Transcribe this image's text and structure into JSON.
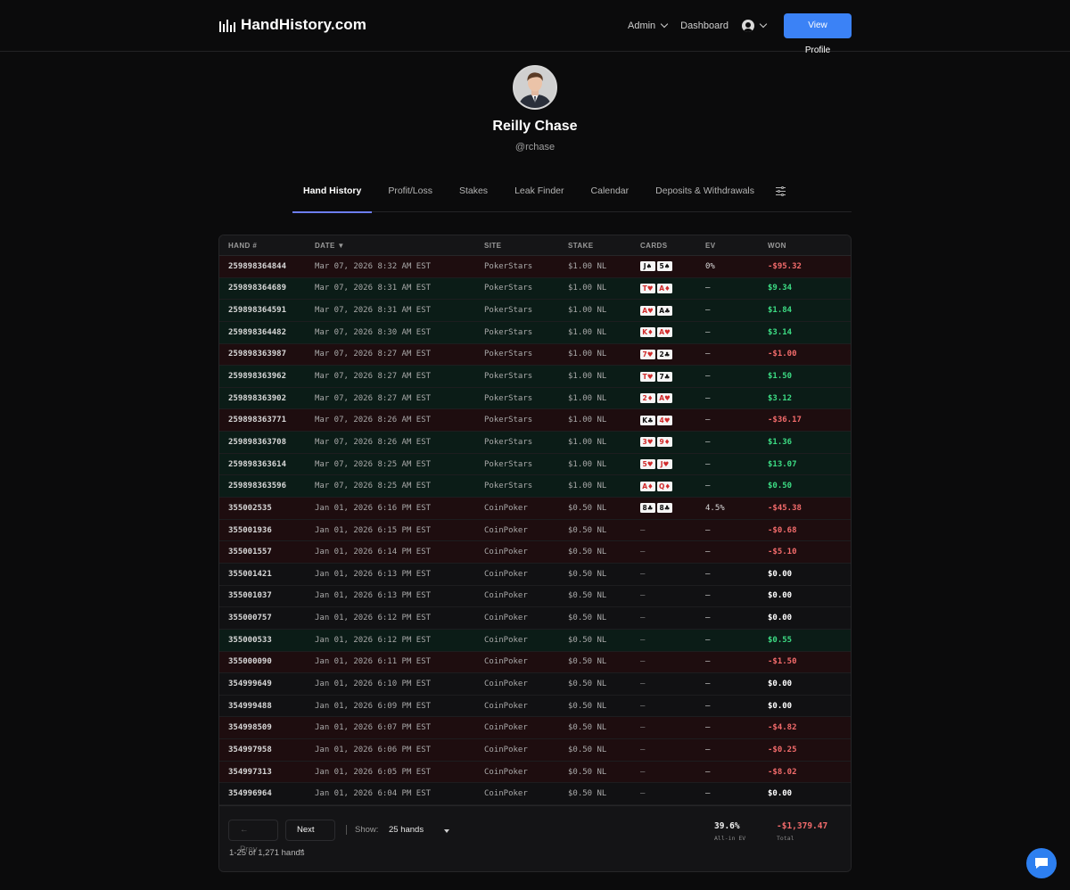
{
  "brand": {
    "name": "HandHistory.com"
  },
  "nav": {
    "admin": "Admin",
    "dashboard": "Dashboard",
    "view_profile": "View Profile"
  },
  "profile": {
    "name": "Reilly Chase",
    "handle": "@rchase"
  },
  "tabs": [
    {
      "label": "Hand History",
      "active": true
    },
    {
      "label": "Profit/Loss"
    },
    {
      "label": "Stakes"
    },
    {
      "label": "Leak Finder"
    },
    {
      "label": "Calendar"
    },
    {
      "label": "Deposits & Withdrawals"
    }
  ],
  "table": {
    "columns": [
      "HAND #",
      "DATE ▼",
      "SITE",
      "STAKE",
      "CARDS",
      "EV",
      "WON"
    ],
    "rows": [
      {
        "hand": "259898364844",
        "date": "Mar 07, 2026 8:32 AM EST",
        "site": "PokerStars",
        "stake": "$1.00 NL",
        "cards": [
          "J♠",
          "5♠"
        ],
        "ev": "0%",
        "won": "-$95.32",
        "result": "neg"
      },
      {
        "hand": "259898364689",
        "date": "Mar 07, 2026 8:31 AM EST",
        "site": "PokerStars",
        "stake": "$1.00 NL",
        "cards": [
          "T♥",
          "A♦"
        ],
        "ev": "—",
        "won": "$9.34",
        "result": "pos"
      },
      {
        "hand": "259898364591",
        "date": "Mar 07, 2026 8:31 AM EST",
        "site": "PokerStars",
        "stake": "$1.00 NL",
        "cards": [
          "A♥",
          "A♣"
        ],
        "ev": "—",
        "won": "$1.84",
        "result": "pos"
      },
      {
        "hand": "259898364482",
        "date": "Mar 07, 2026 8:30 AM EST",
        "site": "PokerStars",
        "stake": "$1.00 NL",
        "cards": [
          "K♦",
          "A♥"
        ],
        "ev": "—",
        "won": "$3.14",
        "result": "pos"
      },
      {
        "hand": "259898363987",
        "date": "Mar 07, 2026 8:27 AM EST",
        "site": "PokerStars",
        "stake": "$1.00 NL",
        "cards": [
          "7♥",
          "2♣"
        ],
        "ev": "—",
        "won": "-$1.00",
        "result": "neg"
      },
      {
        "hand": "259898363962",
        "date": "Mar 07, 2026 8:27 AM EST",
        "site": "PokerStars",
        "stake": "$1.00 NL",
        "cards": [
          "T♥",
          "7♣"
        ],
        "ev": "—",
        "won": "$1.50",
        "result": "pos"
      },
      {
        "hand": "259898363902",
        "date": "Mar 07, 2026 8:27 AM EST",
        "site": "PokerStars",
        "stake": "$1.00 NL",
        "cards": [
          "2♦",
          "A♥"
        ],
        "ev": "—",
        "won": "$3.12",
        "result": "pos"
      },
      {
        "hand": "259898363771",
        "date": "Mar 07, 2026 8:26 AM EST",
        "site": "PokerStars",
        "stake": "$1.00 NL",
        "cards": [
          "K♣",
          "4♥"
        ],
        "ev": "—",
        "won": "-$36.17",
        "result": "neg"
      },
      {
        "hand": "259898363708",
        "date": "Mar 07, 2026 8:26 AM EST",
        "site": "PokerStars",
        "stake": "$1.00 NL",
        "cards": [
          "3♥",
          "9♦"
        ],
        "ev": "—",
        "won": "$1.36",
        "result": "pos"
      },
      {
        "hand": "259898363614",
        "date": "Mar 07, 2026 8:25 AM EST",
        "site": "PokerStars",
        "stake": "$1.00 NL",
        "cards": [
          "5♥",
          "J♥"
        ],
        "ev": "—",
        "won": "$13.07",
        "result": "pos"
      },
      {
        "hand": "259898363596",
        "date": "Mar 07, 2026 8:25 AM EST",
        "site": "PokerStars",
        "stake": "$1.00 NL",
        "cards": [
          "A♦",
          "Q♦"
        ],
        "ev": "—",
        "won": "$0.50",
        "result": "pos"
      },
      {
        "hand": "355002535",
        "date": "Jan 01, 2026 6:16 PM EST",
        "site": "CoinPoker",
        "stake": "$0.50 NL",
        "cards": [
          "8♣",
          "8♣"
        ],
        "ev": "4.5%",
        "won": "-$45.38",
        "result": "neg"
      },
      {
        "hand": "355001936",
        "date": "Jan 01, 2026 6:15 PM EST",
        "site": "CoinPoker",
        "stake": "$0.50 NL",
        "cards": [],
        "ev": "—",
        "won": "-$0.68",
        "result": "neg"
      },
      {
        "hand": "355001557",
        "date": "Jan 01, 2026 6:14 PM EST",
        "site": "CoinPoker",
        "stake": "$0.50 NL",
        "cards": [],
        "ev": "—",
        "won": "-$5.10",
        "result": "neg"
      },
      {
        "hand": "355001421",
        "date": "Jan 01, 2026 6:13 PM EST",
        "site": "CoinPoker",
        "stake": "$0.50 NL",
        "cards": [],
        "ev": "—",
        "won": "$0.00",
        "result": "zero"
      },
      {
        "hand": "355001037",
        "date": "Jan 01, 2026 6:13 PM EST",
        "site": "CoinPoker",
        "stake": "$0.50 NL",
        "cards": [],
        "ev": "—",
        "won": "$0.00",
        "result": "zero"
      },
      {
        "hand": "355000757",
        "date": "Jan 01, 2026 6:12 PM EST",
        "site": "CoinPoker",
        "stake": "$0.50 NL",
        "cards": [],
        "ev": "—",
        "won": "$0.00",
        "result": "zero"
      },
      {
        "hand": "355000533",
        "date": "Jan 01, 2026 6:12 PM EST",
        "site": "CoinPoker",
        "stake": "$0.50 NL",
        "cards": [],
        "ev": "—",
        "won": "$0.55",
        "result": "pos"
      },
      {
        "hand": "355000090",
        "date": "Jan 01, 2026 6:11 PM EST",
        "site": "CoinPoker",
        "stake": "$0.50 NL",
        "cards": [],
        "ev": "—",
        "won": "-$1.50",
        "result": "neg"
      },
      {
        "hand": "354999649",
        "date": "Jan 01, 2026 6:10 PM EST",
        "site": "CoinPoker",
        "stake": "$0.50 NL",
        "cards": [],
        "ev": "—",
        "won": "$0.00",
        "result": "zero"
      },
      {
        "hand": "354999488",
        "date": "Jan 01, 2026 6:09 PM EST",
        "site": "CoinPoker",
        "stake": "$0.50 NL",
        "cards": [],
        "ev": "—",
        "won": "$0.00",
        "result": "zero"
      },
      {
        "hand": "354998509",
        "date": "Jan 01, 2026 6:07 PM EST",
        "site": "CoinPoker",
        "stake": "$0.50 NL",
        "cards": [],
        "ev": "—",
        "won": "-$4.82",
        "result": "neg"
      },
      {
        "hand": "354997958",
        "date": "Jan 01, 2026 6:06 PM EST",
        "site": "CoinPoker",
        "stake": "$0.50 NL",
        "cards": [],
        "ev": "—",
        "won": "-$0.25",
        "result": "neg"
      },
      {
        "hand": "354997313",
        "date": "Jan 01, 2026 6:05 PM EST",
        "site": "CoinPoker",
        "stake": "$0.50 NL",
        "cards": [],
        "ev": "—",
        "won": "-$8.02",
        "result": "neg"
      },
      {
        "hand": "354996964",
        "date": "Jan 01, 2026 6:04 PM EST",
        "site": "CoinPoker",
        "stake": "$0.50 NL",
        "cards": [],
        "ev": "—",
        "won": "$0.00",
        "result": "zero"
      }
    ],
    "no_cards_glyph": "—"
  },
  "pagination": {
    "prev": "← Prev",
    "next": "Next →",
    "show_label": "Show:",
    "show_value": "25 hands",
    "count": "1-25 of 1,271 hands"
  },
  "summary": {
    "ev_value": "39.6%",
    "ev_label": "All-in EV",
    "total_value": "-$1,379.47",
    "total_label": "Total"
  },
  "colors": {
    "accent": "#3b82f6",
    "tab_underline": "#6d7df0",
    "win": "#3ddc84",
    "loss": "#f26b6b",
    "row_win_bg": "#0b1c17",
    "row_loss_bg": "#1e0d0f"
  },
  "icons": {
    "logo": "bars-logo-icon",
    "user": "user-circle-icon",
    "settings": "sliders-icon",
    "chat": "chat-bubble-icon"
  }
}
